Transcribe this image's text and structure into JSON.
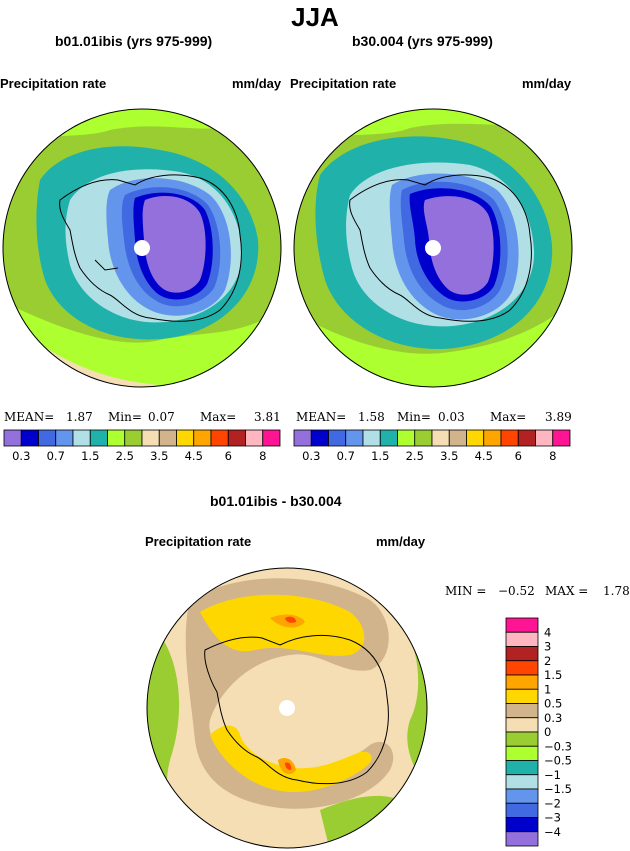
{
  "title": "JJA",
  "panels": [
    {
      "subtitle": "b01.01ibis (yrs 975-999)",
      "variable": "Precipitation rate",
      "units": "mm/day",
      "stats": {
        "mean_label": "MEAN=",
        "mean": "1.87",
        "min_label": "Min=",
        "min": "0.07",
        "max_label": "Max=",
        "max": "3.81"
      }
    },
    {
      "subtitle": "b30.004 (yrs 975-999)",
      "variable": "Precipitation rate",
      "units": "mm/day",
      "stats": {
        "mean_label": "MEAN=",
        "mean": "1.58",
        "min_label": "Min=",
        "min": "0.03",
        "max_label": "Max=",
        "max": "3.89"
      }
    }
  ],
  "diff": {
    "subtitle": "b01.01ibis - b30.004",
    "variable": "Precipitation rate",
    "units": "mm/day",
    "min_label": "MIN =",
    "min": "−0.52",
    "max_label": "MAX =",
    "max": "1.78"
  },
  "chart_data": [
    {
      "type": "heatmap",
      "projection": "south polar stereographic",
      "title": "b01.01ibis (yrs 975-999)",
      "variable": "Precipitation rate",
      "units": "mm/day",
      "mean": 1.87,
      "min": 0.07,
      "max": 3.81,
      "levels": [
        0.3,
        0.5,
        0.7,
        1,
        1.5,
        2,
        2.5,
        3,
        3.5,
        4,
        4.5,
        5,
        6,
        7,
        8
      ],
      "level_labels": [
        "0.3",
        "0.7",
        "1.5",
        "2.5",
        "3.5",
        "4.5",
        "6",
        "8"
      ],
      "colors": [
        "#9370db",
        "#0000cd",
        "#4169e1",
        "#6495ed",
        "#b0e0e6",
        "#20b2aa",
        "#adff2f",
        "#9acd32",
        "#f5deb3",
        "#d2b48c",
        "#ffd700",
        "#ffa500",
        "#ff4500",
        "#b22222",
        "#ffb6c1",
        "#ff1493"
      ]
    },
    {
      "type": "heatmap",
      "projection": "south polar stereographic",
      "title": "b30.004 (yrs 975-999)",
      "variable": "Precipitation rate",
      "units": "mm/day",
      "mean": 1.58,
      "min": 0.03,
      "max": 3.89,
      "levels": [
        0.3,
        0.5,
        0.7,
        1,
        1.5,
        2,
        2.5,
        3,
        3.5,
        4,
        4.5,
        5,
        6,
        7,
        8
      ],
      "level_labels": [
        "0.3",
        "0.7",
        "1.5",
        "2.5",
        "3.5",
        "4.5",
        "6",
        "8"
      ],
      "colors": [
        "#9370db",
        "#0000cd",
        "#4169e1",
        "#6495ed",
        "#b0e0e6",
        "#20b2aa",
        "#adff2f",
        "#9acd32",
        "#f5deb3",
        "#d2b48c",
        "#ffd700",
        "#ffa500",
        "#ff4500",
        "#b22222",
        "#ffb6c1",
        "#ff1493"
      ]
    },
    {
      "type": "heatmap",
      "projection": "south polar stereographic",
      "title": "b01.01ibis - b30.004",
      "variable": "Precipitation rate",
      "units": "mm/day",
      "min": -0.52,
      "max": 1.78,
      "levels_labels_top_to_bottom": [
        "4",
        "3",
        "2",
        "1.5",
        "1",
        "0.5",
        "0.3",
        "0",
        "−0.3",
        "−0.5",
        "−1",
        "−1.5",
        "−2",
        "−3",
        "−4"
      ],
      "colors_top_to_bottom": [
        "#ff1493",
        "#ffb6c1",
        "#b22222",
        "#ff4500",
        "#ffa500",
        "#ffd700",
        "#d2b48c",
        "#f5deb3",
        "#9acd32",
        "#adff2f",
        "#20b2aa",
        "#b0e0e6",
        "#6495ed",
        "#4169e1",
        "#0000cd",
        "#9370db"
      ]
    }
  ]
}
